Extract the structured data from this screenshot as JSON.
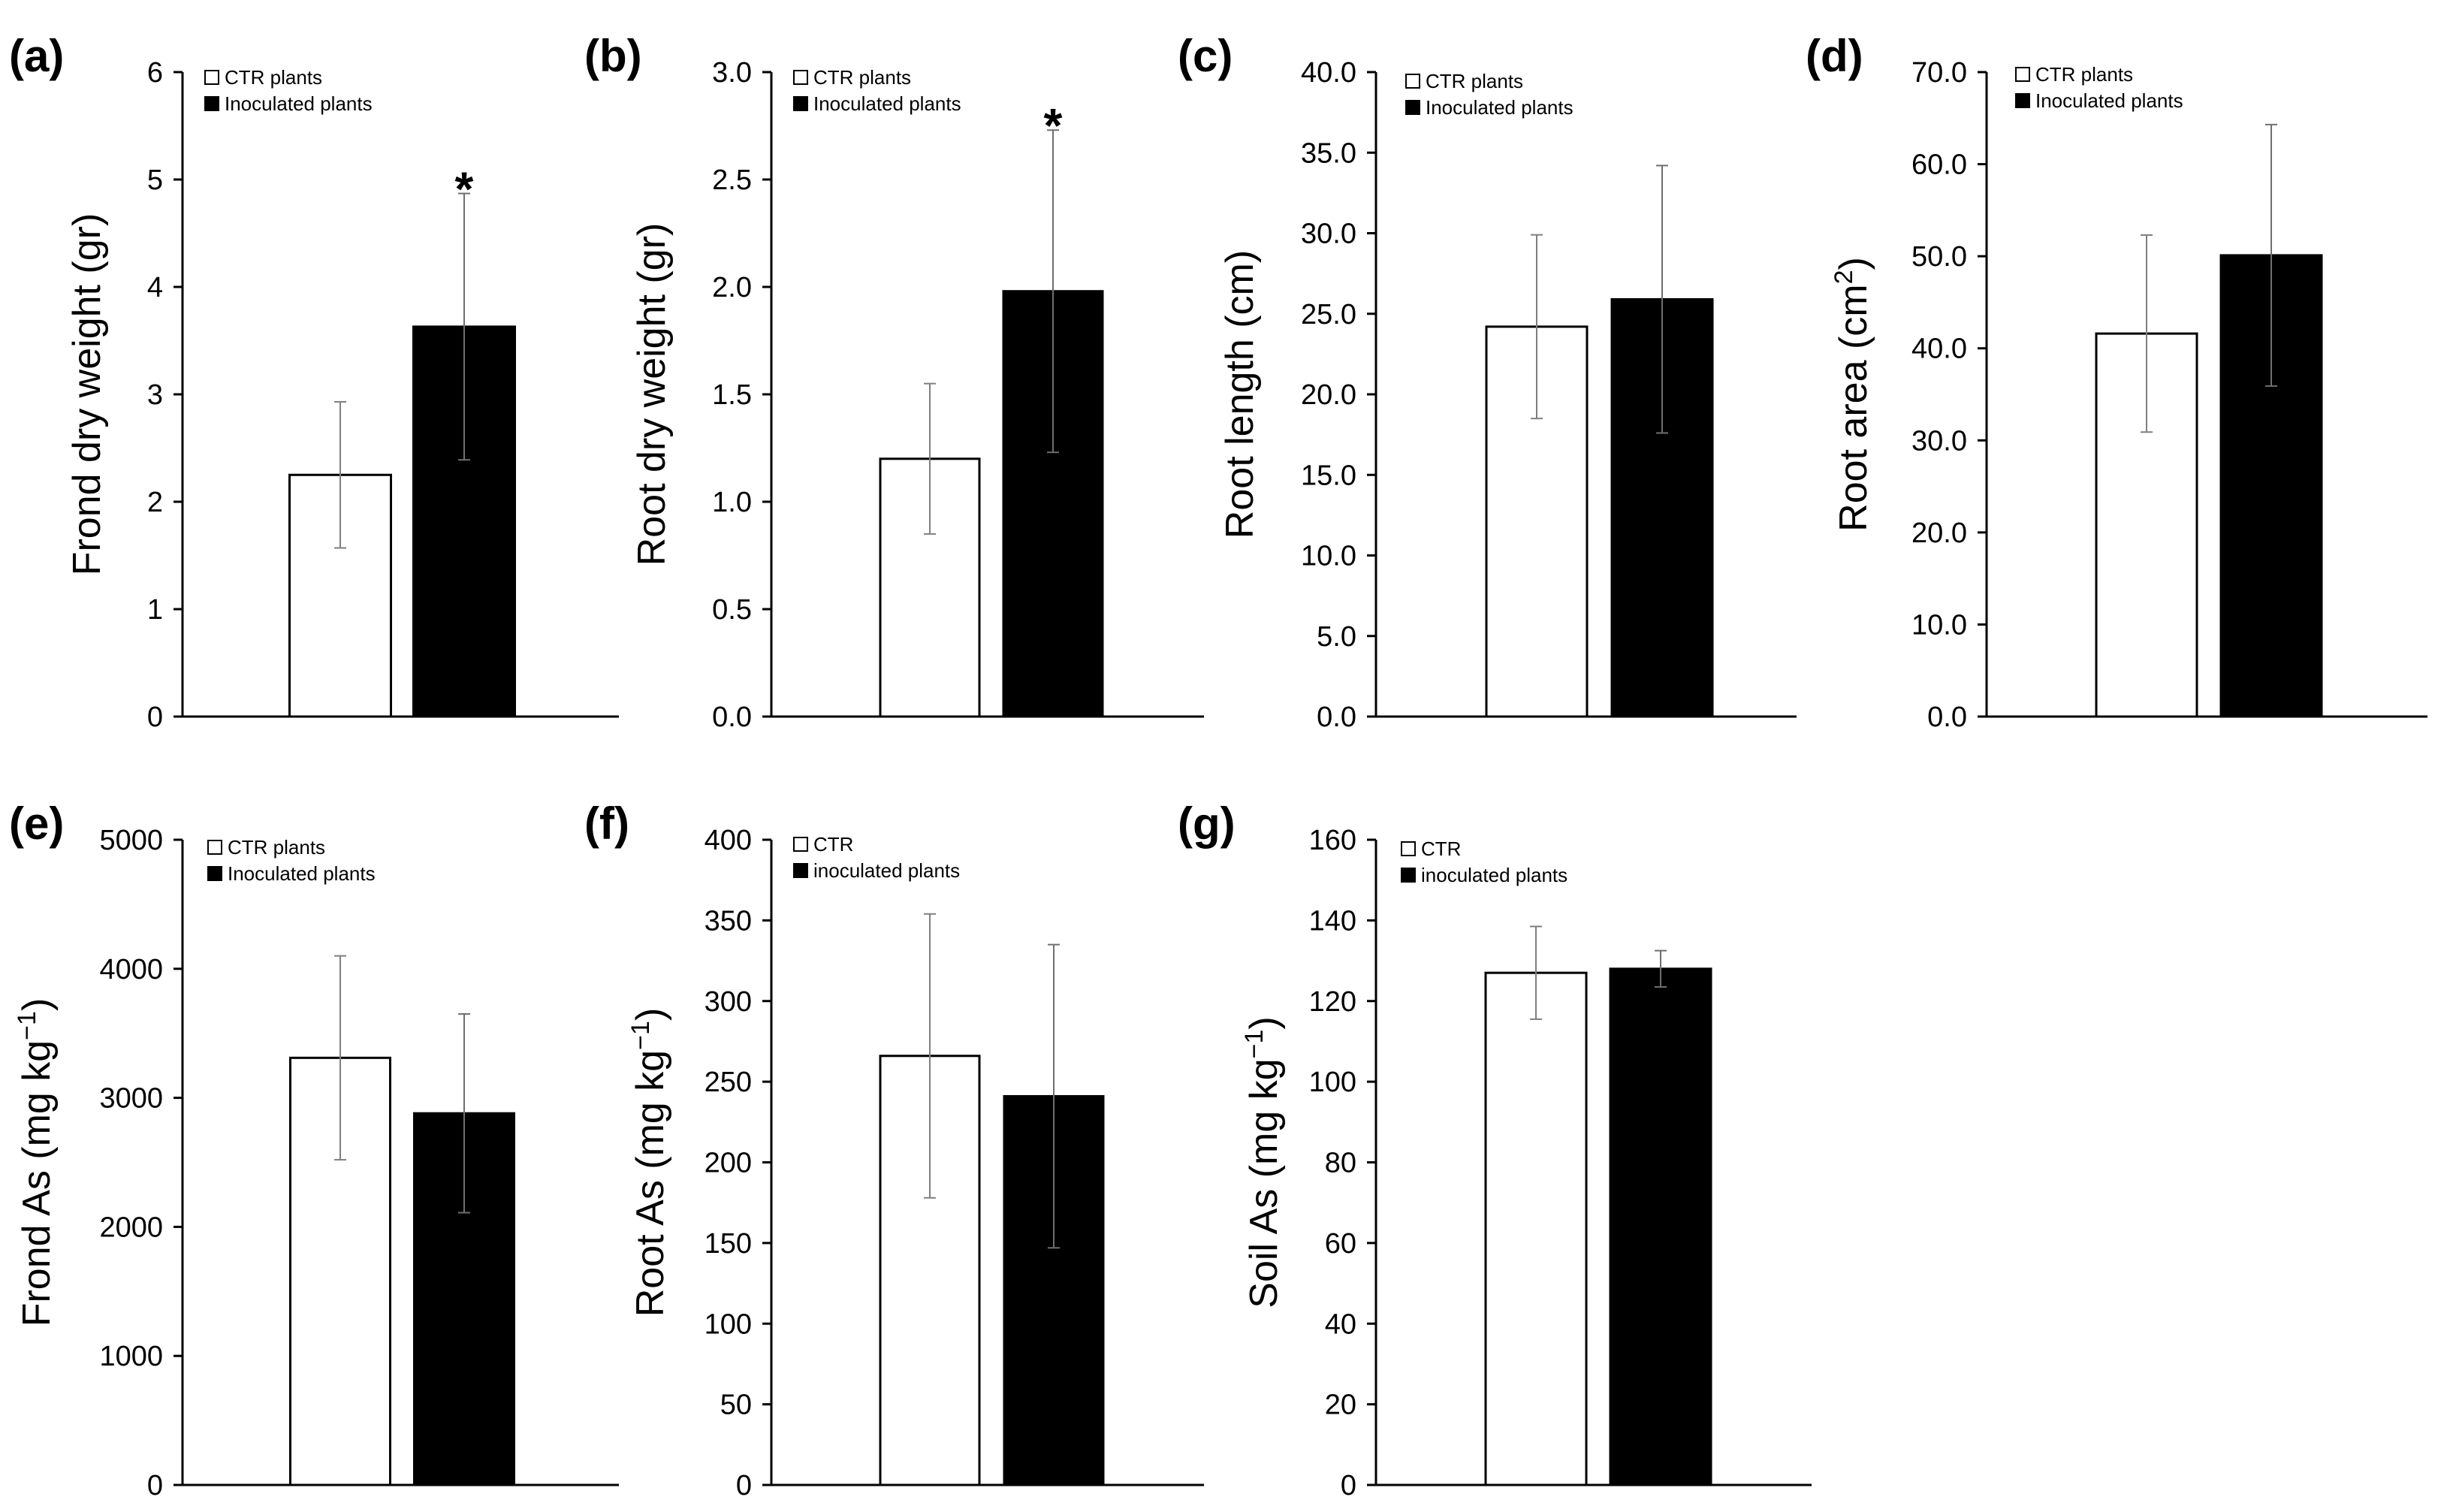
{
  "chart_data": [
    {
      "panel": "(a)",
      "type": "bar",
      "ylabel": "Frond dry weight (gr)",
      "ylim": [
        0,
        6
      ],
      "yticks": [
        "0",
        "1",
        "2",
        "3",
        "4",
        "5",
        "6"
      ],
      "categories": [
        "CTR plants",
        "Inoculated plants"
      ],
      "values": [
        2.25,
        3.63
      ],
      "errors": [
        0.68,
        1.24
      ],
      "significant": [
        false,
        true
      ],
      "sig_marker": "*"
    },
    {
      "panel": "(b)",
      "type": "bar",
      "ylabel": "Root dry weight (gr)",
      "ylim": [
        0,
        3
      ],
      "yticks": [
        "0.0",
        "0.5",
        "1.0",
        "1.5",
        "2.0",
        "2.5",
        "3.0"
      ],
      "categories": [
        "CTR plants",
        "Inoculated plants"
      ],
      "values": [
        1.2,
        1.98
      ],
      "errors": [
        0.35,
        0.75
      ],
      "significant": [
        false,
        true
      ],
      "sig_marker": "*"
    },
    {
      "panel": "(c)",
      "type": "bar",
      "ylabel": "Root length (cm)",
      "ylim": [
        0,
        40
      ],
      "yticks": [
        "0.0",
        "5.0",
        "10.0",
        "15.0",
        "20.0",
        "25.0",
        "30.0",
        "35.0",
        "40.0"
      ],
      "categories": [
        "CTR plants",
        "Inoculated plants"
      ],
      "values": [
        24.2,
        25.9
      ],
      "errors": [
        5.7,
        8.3
      ],
      "significant": [
        false,
        false
      ],
      "sig_marker": "*"
    },
    {
      "panel": "(d)",
      "type": "bar",
      "ylabel": "Root area (cm²)",
      "ylim": [
        0,
        70
      ],
      "yticks": [
        "0.0",
        "10.0",
        "20.0",
        "30.0",
        "40.0",
        "50.0",
        "60.0",
        "70.0"
      ],
      "categories": [
        "CTR plants",
        "Inoculated plants"
      ],
      "values": [
        41.6,
        50.1
      ],
      "errors": [
        10.7,
        14.2
      ],
      "significant": [
        false,
        false
      ],
      "sig_marker": "*"
    },
    {
      "panel": "(e)",
      "type": "bar",
      "ylabel": "Frond As (mg kg⁻¹)",
      "ylim": [
        0,
        5000
      ],
      "yticks": [
        "0",
        "1000",
        "2000",
        "3000",
        "4000",
        "5000"
      ],
      "categories": [
        "CTR plants",
        "Inoculated plants"
      ],
      "values": [
        3310,
        2880
      ],
      "errors": [
        790,
        770
      ],
      "significant": [
        false,
        false
      ],
      "sig_marker": "*"
    },
    {
      "panel": "(f)",
      "type": "bar",
      "ylabel": "Root As (mg kg⁻¹)",
      "ylim": [
        0,
        400
      ],
      "yticks": [
        "0",
        "50",
        "100",
        "150",
        "200",
        "250",
        "300",
        "350",
        "400"
      ],
      "categories": [
        "CTR",
        "inoculated plants"
      ],
      "values": [
        266,
        241
      ],
      "errors": [
        88,
        94
      ],
      "significant": [
        false,
        false
      ],
      "sig_marker": "*"
    },
    {
      "panel": "(g)",
      "type": "bar",
      "ylabel": "Soil As (mg kg⁻¹)",
      "ylim": [
        0,
        160
      ],
      "yticks": [
        "0",
        "20",
        "40",
        "60",
        "80",
        "100",
        "120",
        "140",
        "160"
      ],
      "categories": [
        "CTR",
        "inoculated plants"
      ],
      "values": [
        127,
        128
      ],
      "errors": [
        11.5,
        4.5
      ],
      "significant": [
        false,
        false
      ],
      "sig_marker": "*"
    }
  ],
  "colors": {
    "ctr_fill": "#ffffff",
    "inoculated_fill": "#000000",
    "axis": "#000000",
    "error_bar": "#7f7f7f"
  }
}
